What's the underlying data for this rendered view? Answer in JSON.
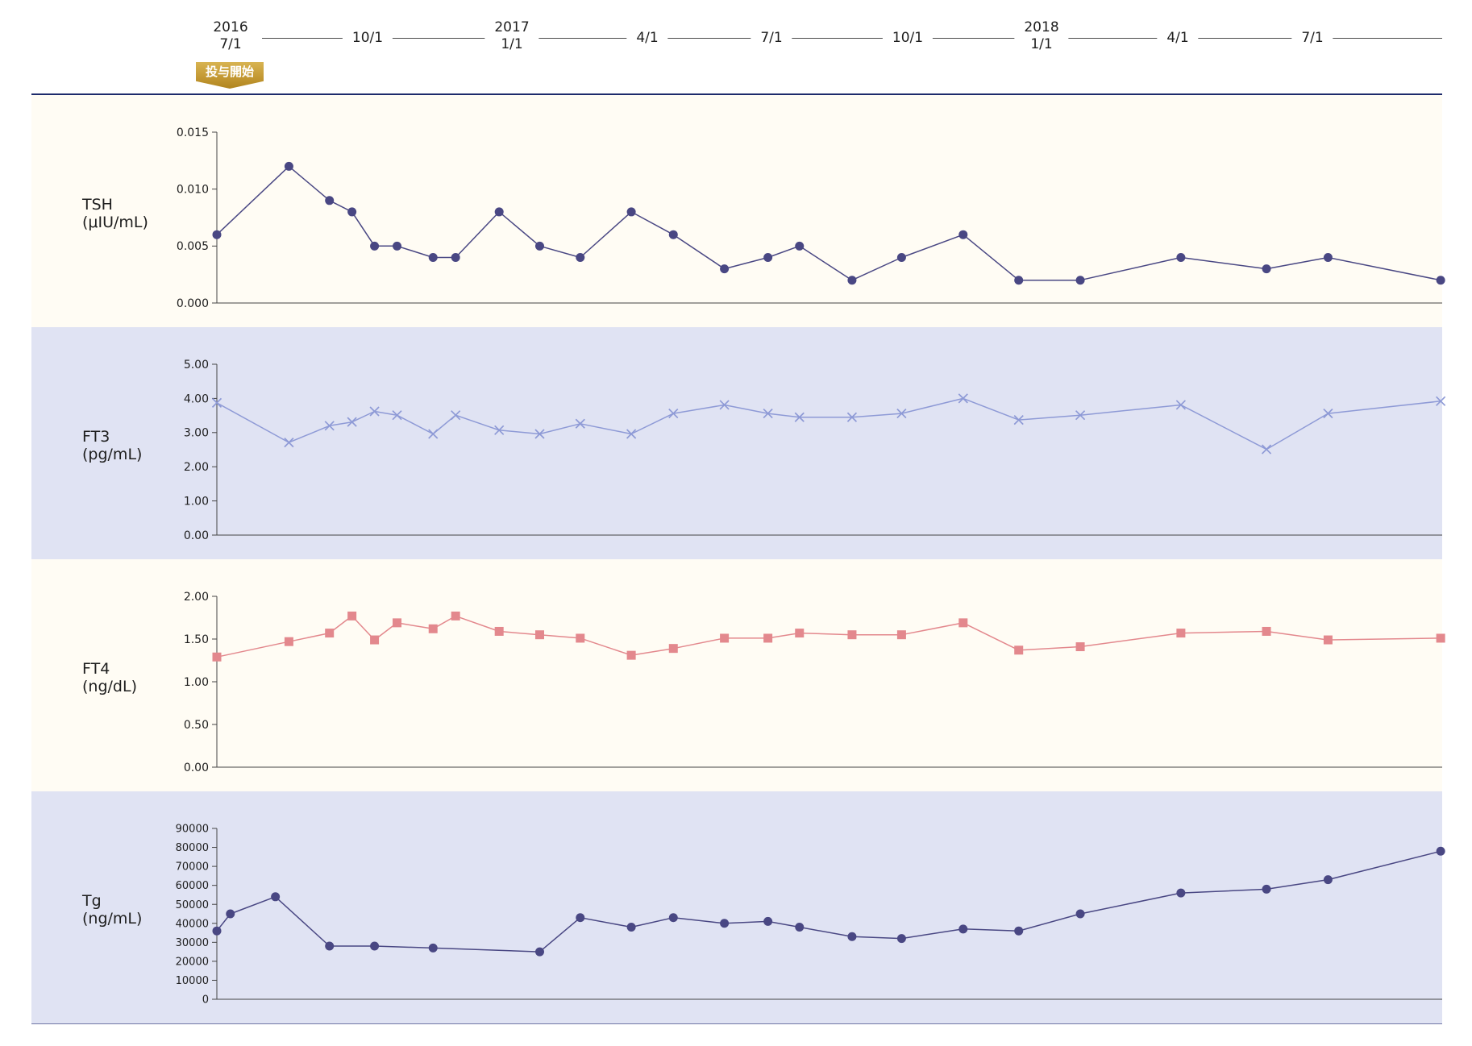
{
  "timeline": {
    "labels": [
      {
        "year": "2016",
        "date": "7/1"
      },
      {
        "date": "10/1"
      },
      {
        "year": "2017",
        "date": "1/1"
      },
      {
        "date": "4/1"
      },
      {
        "date": "7/1"
      },
      {
        "date": "10/1"
      },
      {
        "year": "2018",
        "date": "1/1"
      },
      {
        "date": "4/1"
      },
      {
        "date": "7/1"
      }
    ],
    "badge": "投与開始"
  },
  "colors": {
    "navy": "#494783",
    "periwinkle": "#8e9ad6",
    "salmon": "#e3888d",
    "cream_panel": "#fffcf4",
    "lavender_panel": "#e0e3f3",
    "badge_gold": "#c29732"
  },
  "chart_data": [
    {
      "type": "line",
      "ylabel": {
        "name": "TSH",
        "unit": "(μIU/mL)"
      },
      "xlim": [
        "2016-07-01",
        "2018-09-25"
      ],
      "ylim": [
        0,
        0.015
      ],
      "yticks": [
        0,
        0.005,
        0.01,
        0.015
      ],
      "ytick_labels": [
        "0.000",
        "0.005",
        "0.010",
        "0.015"
      ],
      "marker": "circle",
      "color": "#494783",
      "x": [
        "2016-07-01",
        "2016-08-18",
        "2016-09-14",
        "2016-09-29",
        "2016-10-14",
        "2016-10-29",
        "2016-11-22",
        "2016-12-07",
        "2017-01-05",
        "2017-02-01",
        "2017-02-28",
        "2017-04-03",
        "2017-05-01",
        "2017-06-04",
        "2017-07-03",
        "2017-07-24",
        "2017-08-28",
        "2017-09-30",
        "2017-11-10",
        "2017-12-17",
        "2018-01-27",
        "2018-04-04",
        "2018-05-31",
        "2018-07-11",
        "2018-09-24"
      ],
      "values": [
        0.006,
        0.012,
        0.009,
        0.008,
        0.005,
        0.005,
        0.004,
        0.004,
        0.008,
        0.005,
        0.004,
        0.008,
        0.006,
        0.003,
        0.004,
        0.005,
        0.002,
        0.004,
        0.006,
        0.002,
        0.002,
        0.004,
        0.003,
        0.004,
        0.002
      ]
    },
    {
      "type": "line",
      "ylabel": {
        "name": "FT3",
        "unit": "(pg/mL)"
      },
      "xlim": [
        "2016-07-01",
        "2018-09-25"
      ],
      "ylim": [
        0,
        5
      ],
      "yticks": [
        0,
        1,
        2,
        3,
        4,
        5
      ],
      "ytick_labels": [
        "0.00",
        "1.00",
        "2.00",
        "3.00",
        "4.00",
        "5.00"
      ],
      "marker": "x",
      "color": "#8e9ad6",
      "x": [
        "2016-07-01",
        "2016-08-18",
        "2016-09-14",
        "2016-09-29",
        "2016-10-14",
        "2016-10-29",
        "2016-11-22",
        "2016-12-07",
        "2017-01-05",
        "2017-02-01",
        "2017-02-28",
        "2017-04-03",
        "2017-05-01",
        "2017-06-04",
        "2017-07-03",
        "2017-07-24",
        "2017-08-28",
        "2017-09-30",
        "2017-11-10",
        "2017-12-17",
        "2018-01-27",
        "2018-04-04",
        "2018-05-31",
        "2018-07-11",
        "2018-09-24"
      ],
      "values": [
        3.87,
        2.71,
        3.2,
        3.31,
        3.62,
        3.51,
        2.96,
        3.51,
        3.07,
        2.96,
        3.26,
        2.96,
        3.56,
        3.81,
        3.56,
        3.45,
        3.45,
        3.56,
        4.0,
        3.37,
        3.51,
        3.81,
        2.51,
        3.56,
        3.92
      ]
    },
    {
      "type": "line",
      "ylabel": {
        "name": "FT4",
        "unit": "(ng/dL)"
      },
      "xlim": [
        "2016-07-01",
        "2018-09-25"
      ],
      "ylim": [
        0,
        2
      ],
      "yticks": [
        0,
        0.5,
        1,
        1.5,
        2
      ],
      "ytick_labels": [
        "0.00",
        "0.50",
        "1.00",
        "1.50",
        "2.00"
      ],
      "marker": "square",
      "color": "#e3888d",
      "x": [
        "2016-07-01",
        "2016-08-18",
        "2016-09-14",
        "2016-09-29",
        "2016-10-14",
        "2016-10-29",
        "2016-11-22",
        "2016-12-07",
        "2017-01-05",
        "2017-02-01",
        "2017-02-28",
        "2017-04-03",
        "2017-05-01",
        "2017-06-04",
        "2017-07-03",
        "2017-07-24",
        "2017-08-28",
        "2017-09-30",
        "2017-11-10",
        "2017-12-17",
        "2018-01-27",
        "2018-04-04",
        "2018-05-31",
        "2018-07-11",
        "2018-09-24"
      ],
      "values": [
        1.29,
        1.47,
        1.57,
        1.77,
        1.49,
        1.69,
        1.62,
        1.77,
        1.59,
        1.55,
        1.51,
        1.31,
        1.39,
        1.51,
        1.51,
        1.57,
        1.55,
        1.55,
        1.69,
        1.37,
        1.41,
        1.57,
        1.59,
        1.49,
        1.51
      ]
    },
    {
      "type": "line",
      "ylabel": {
        "name": "Tg",
        "unit": "(ng/mL)"
      },
      "xlim": [
        "2016-07-01",
        "2018-09-25"
      ],
      "ylim": [
        0,
        90000
      ],
      "yticks": [
        0,
        10000,
        20000,
        30000,
        40000,
        50000,
        60000,
        70000,
        80000,
        90000
      ],
      "ytick_labels": [
        "0",
        "10000",
        "20000",
        "30000",
        "40000",
        "50000",
        "60000",
        "70000",
        "80000",
        "90000"
      ],
      "marker": "circle",
      "color": "#494783",
      "x": [
        "2016-07-01",
        "2016-07-10",
        "2016-08-09",
        "2016-09-14",
        "2016-10-14",
        "2016-11-22",
        "2017-02-01",
        "2017-02-28",
        "2017-04-03",
        "2017-05-01",
        "2017-06-04",
        "2017-07-03",
        "2017-07-24",
        "2017-08-28",
        "2017-09-30",
        "2017-11-10",
        "2017-12-17",
        "2018-01-27",
        "2018-04-04",
        "2018-05-31",
        "2018-07-11",
        "2018-09-24"
      ],
      "values": [
        36000,
        45000,
        54000,
        28000,
        28000,
        27000,
        25000,
        43000,
        38000,
        43000,
        40000,
        41000,
        38000,
        33000,
        32000,
        37000,
        36000,
        45000,
        56000,
        58000,
        63000,
        78000
      ]
    }
  ]
}
